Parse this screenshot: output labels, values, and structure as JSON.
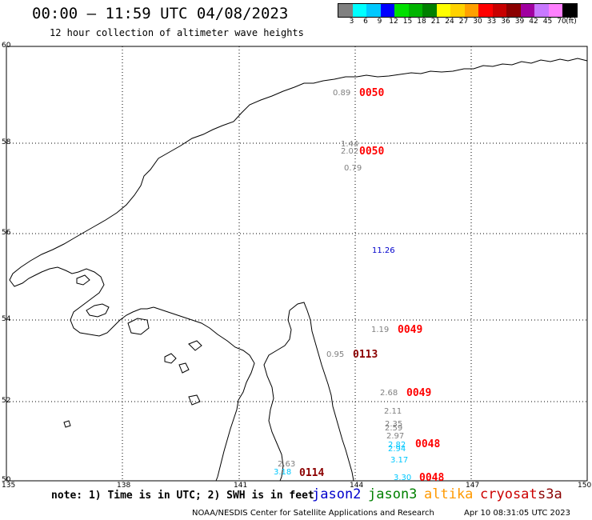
{
  "header": {
    "title": "00:00 — 11:59 UTC 04/08/2023",
    "subtitle": "12 hour collection of altimeter wave heights"
  },
  "colorbar": {
    "colors": [
      "#808080",
      "#00ffff",
      "#00c8ff",
      "#0000ff",
      "#00e000",
      "#00b400",
      "#008000",
      "#ffff00",
      "#ffd200",
      "#ffa000",
      "#ff0000",
      "#c80000",
      "#8b0000",
      "#a000a0",
      "#c878ff",
      "#ff80ff",
      "#000000"
    ],
    "labels": [
      "3",
      "6",
      "9",
      "12",
      "15",
      "18",
      "21",
      "24",
      "27",
      "30",
      "33",
      "36",
      "39",
      "42",
      "45",
      "70"
    ],
    "unit": "(ft)"
  },
  "map": {
    "lat_labels": [
      "60",
      "58",
      "56",
      "54",
      "52",
      "50"
    ],
    "lon_labels": [
      "135",
      "138",
      "141",
      "144",
      "147",
      "150"
    ],
    "observations": [
      {
        "text": "0.89",
        "color": "#808080"
      },
      {
        "text": "1.44",
        "color": "#808080"
      },
      {
        "text": "2.02",
        "color": "#808080"
      },
      {
        "text": "0.79",
        "color": "#808080"
      },
      {
        "text": "11.26",
        "color": "#0000cc"
      },
      {
        "text": "1.19",
        "color": "#808080"
      },
      {
        "text": "0.95",
        "color": "#808080"
      },
      {
        "text": "2.68",
        "color": "#808080"
      },
      {
        "text": "2.11",
        "color": "#808080"
      },
      {
        "text": "2.35",
        "color": "#808080"
      },
      {
        "text": "2.59",
        "color": "#808080"
      },
      {
        "text": "2.97",
        "color": "#808080"
      },
      {
        "text": "2.82",
        "color": "#00c8ff"
      },
      {
        "text": "2.94",
        "color": "#00c8ff"
      },
      {
        "text": "3.17",
        "color": "#00c8ff"
      },
      {
        "text": "2.63",
        "color": "#808080"
      },
      {
        "text": "3.18",
        "color": "#00c8ff"
      },
      {
        "text": "3.30",
        "color": "#00c8ff"
      }
    ],
    "times": [
      {
        "text": "0050",
        "color": "#ff0000"
      },
      {
        "text": "0050",
        "color": "#ff0000"
      },
      {
        "text": "0049",
        "color": "#ff0000"
      },
      {
        "text": "0113",
        "color": "#8b0000"
      },
      {
        "text": "0049",
        "color": "#ff0000"
      },
      {
        "text": "0048",
        "color": "#ff0000"
      },
      {
        "text": "0114",
        "color": "#8b0000"
      },
      {
        "text": "0048",
        "color": "#ff0000"
      }
    ]
  },
  "legend": {
    "note": "note: 1) Time is in UTC; 2) SWH is in feet",
    "satellites": [
      {
        "name": "jason2",
        "color": "#0000cc"
      },
      {
        "name": "jason3",
        "color": "#008000"
      },
      {
        "name": "altika",
        "color": "#ff9900"
      },
      {
        "name": "cryosat",
        "color": "#cc0000"
      },
      {
        "name": "s3a",
        "color": "#8b0000"
      }
    ]
  },
  "footer": {
    "credit": "NOAA/NESDIS Center for Satellite Applications and Research",
    "timestamp": "Apr 10 08:31:05 UTC 2023"
  }
}
